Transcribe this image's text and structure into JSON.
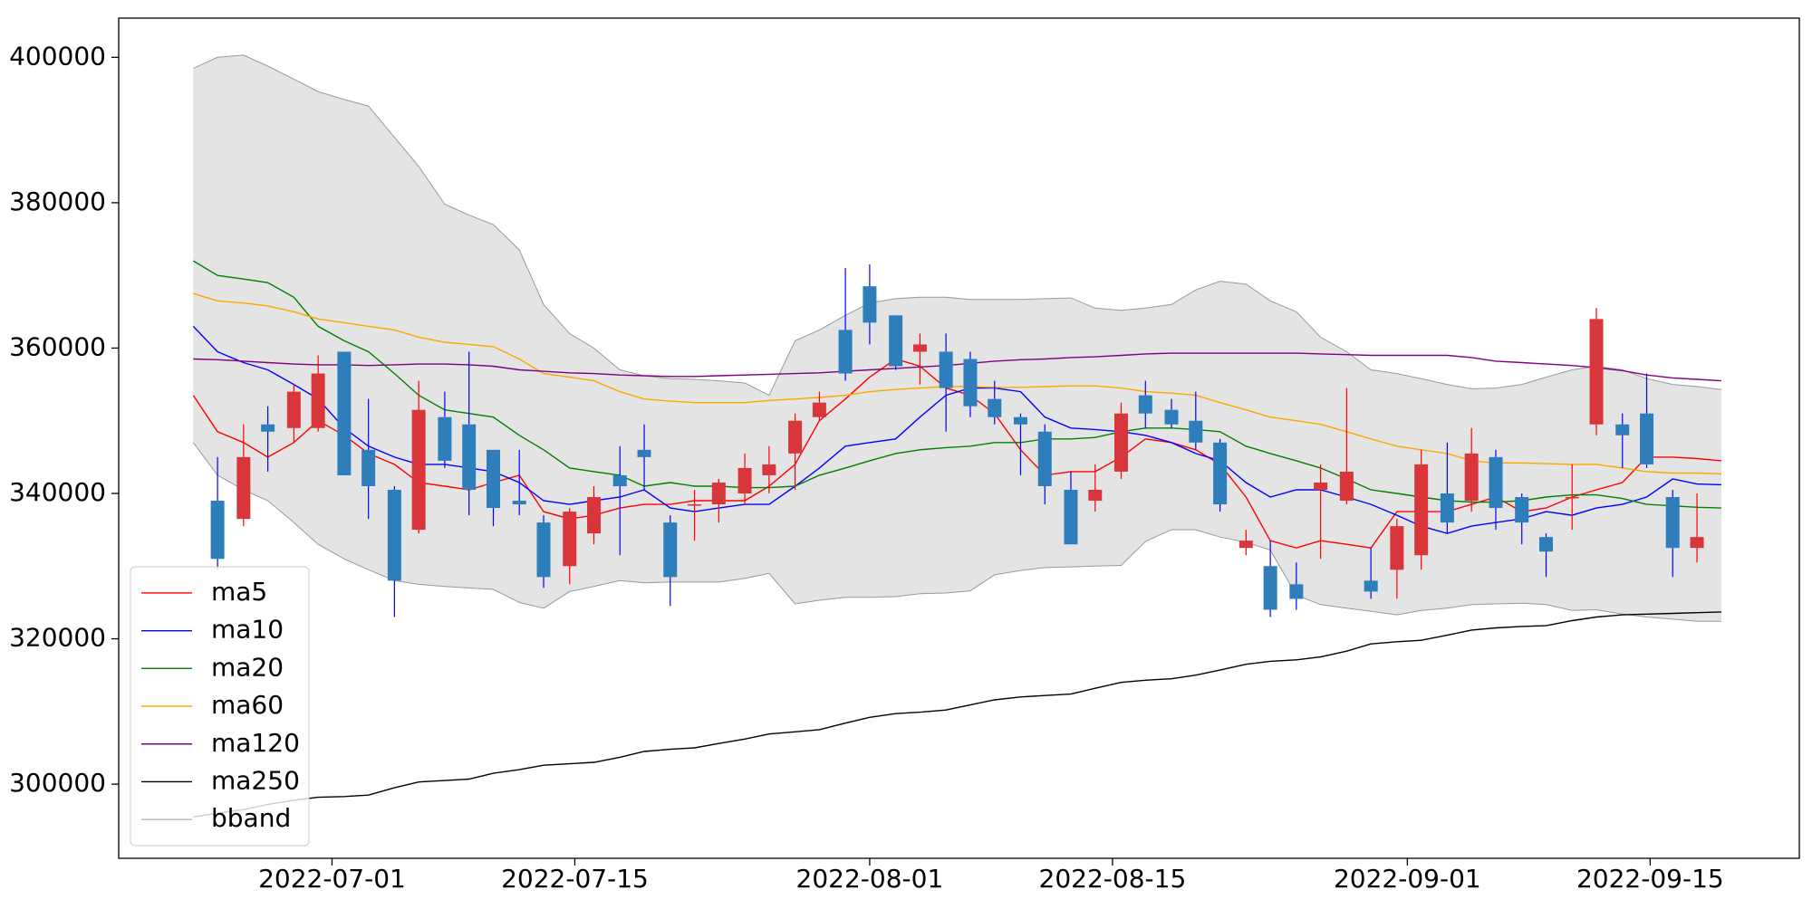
{
  "chart_data": {
    "type": "candlestick",
    "xlim": [
      -12.3,
      84.6
    ],
    "xticks": [
      {
        "value": 0,
        "label": "2022-07-01"
      },
      {
        "value": 14,
        "label": "2022-07-15"
      },
      {
        "value": 31,
        "label": "2022-08-01"
      },
      {
        "value": 45,
        "label": "2022-08-15"
      },
      {
        "value": 62,
        "label": "2022-09-01"
      },
      {
        "value": 76,
        "label": "2022-09-15"
      }
    ],
    "ylim": [
      289800,
      405400
    ],
    "yticks": [
      300000,
      320000,
      340000,
      360000,
      380000,
      400000
    ],
    "legend": "lower left",
    "x": [
      -8.0,
      -6.6,
      -5.1,
      -3.7,
      -2.2,
      -0.8,
      0.7,
      2.1,
      3.6,
      5.0,
      6.5,
      7.9,
      9.3,
      10.8,
      12.2,
      13.7,
      15.1,
      16.6,
      18.0,
      19.5,
      20.9,
      22.3,
      23.8,
      25.2,
      26.7,
      28.1,
      29.6,
      31.0,
      32.5,
      33.9,
      35.4,
      36.8,
      38.2,
      39.7,
      41.1,
      42.6,
      44.0,
      45.5,
      46.9,
      48.4,
      49.8,
      51.2,
      52.7,
      54.1,
      55.6,
      57.0,
      58.5,
      59.9,
      61.4,
      62.8,
      64.3,
      65.7,
      67.1,
      68.6,
      70.0,
      71.5,
      72.9,
      74.4,
      75.8,
      77.3,
      78.7,
      80.1
    ],
    "candles": {
      "up_color": "#d8363b",
      "down_color": "#2e7ebc",
      "up_wick": "#ff0000",
      "down_wick": "#0000ff",
      "open": [
        null,
        339000,
        336500,
        349500,
        349000,
        349000,
        359500,
        346000,
        340500,
        335000,
        350500,
        349500,
        346000,
        339000,
        336000,
        330000,
        334500,
        342500,
        346000,
        336000,
        338500,
        338500,
        340000,
        342500,
        345500,
        350500,
        362500,
        368500,
        364500,
        359500,
        359500,
        358500,
        353000,
        350500,
        348500,
        340500,
        339000,
        343000,
        353500,
        351500,
        350000,
        347000,
        332500,
        330000,
        327500,
        340500,
        339000,
        328000,
        329500,
        331500,
        340000,
        339000,
        345000,
        339500,
        334000,
        339500,
        349500,
        349500,
        351000,
        339500,
        332500,
        null
      ],
      "high": [
        null,
        345000,
        349500,
        352000,
        355000,
        359000,
        359500,
        353000,
        341000,
        355500,
        354000,
        359500,
        346000,
        346000,
        337000,
        338000,
        341000,
        346500,
        349500,
        337000,
        340500,
        342000,
        345500,
        346500,
        351000,
        354000,
        371000,
        371500,
        364500,
        362000,
        362000,
        359500,
        355500,
        351000,
        349500,
        343000,
        344000,
        352500,
        355500,
        353000,
        354000,
        347500,
        335000,
        333500,
        330500,
        344000,
        354500,
        332500,
        336500,
        346000,
        347000,
        349000,
        346000,
        340000,
        334500,
        344000,
        365500,
        351000,
        356500,
        340500,
        340000,
        null
      ],
      "low": [
        null,
        329500,
        335500,
        343000,
        347000,
        348500,
        342500,
        336500,
        323000,
        334500,
        343500,
        337000,
        335500,
        337000,
        327000,
        327500,
        333000,
        331500,
        340500,
        324500,
        333500,
        336000,
        338500,
        340000,
        340500,
        350000,
        355500,
        360500,
        357000,
        355000,
        348500,
        350500,
        349500,
        342500,
        338500,
        333000,
        337500,
        342000,
        349000,
        349000,
        346000,
        337500,
        331500,
        323000,
        324000,
        331000,
        338500,
        325500,
        325500,
        329500,
        334500,
        337500,
        335000,
        333000,
        328500,
        335000,
        348000,
        343500,
        343500,
        328500,
        330500,
        null
      ],
      "close": [
        null,
        331000,
        345000,
        348500,
        354000,
        356500,
        342500,
        341000,
        328000,
        351500,
        344500,
        340500,
        338000,
        338500,
        328500,
        337500,
        339500,
        341000,
        345000,
        328500,
        338500,
        341500,
        343500,
        344000,
        350000,
        352500,
        356500,
        363500,
        357500,
        360500,
        354500,
        352000,
        350500,
        349500,
        341000,
        333000,
        340500,
        351000,
        351000,
        349500,
        347000,
        338500,
        333500,
        324000,
        325500,
        341500,
        343000,
        326500,
        335500,
        344000,
        336000,
        345500,
        338000,
        336000,
        332000,
        339500,
        364000,
        348000,
        344000,
        332500,
        334000,
        null
      ]
    },
    "series": [
      {
        "name": "ma5",
        "color": "#ff0000",
        "values": [
          353500,
          348500,
          347000,
          345000,
          347000,
          350000,
          348000,
          345500,
          344000,
          341500,
          341000,
          340500,
          341500,
          342500,
          337500,
          336500,
          337000,
          338000,
          338500,
          338500,
          339000,
          339000,
          339000,
          341000,
          344000,
          350000,
          353000,
          356000,
          358500,
          357500,
          354500,
          353500,
          351000,
          346000,
          342500,
          343000,
          343000,
          345000,
          347500,
          347000,
          346000,
          344000,
          339500,
          333500,
          332500,
          333500,
          333000,
          332500,
          337500,
          337500,
          337500,
          338500,
          339500,
          337500,
          338000,
          339500,
          340500,
          341500,
          345000,
          345000,
          344800,
          344500
        ]
      },
      {
        "name": "ma10",
        "color": "#0000ff",
        "values": [
          363000,
          359500,
          358000,
          357000,
          355000,
          353000,
          349000,
          346500,
          345000,
          344000,
          344000,
          343500,
          343000,
          341500,
          339000,
          338500,
          339000,
          339500,
          340500,
          338000,
          337500,
          338000,
          338500,
          338500,
          341000,
          343500,
          346500,
          347000,
          347500,
          350500,
          353500,
          354500,
          354500,
          354000,
          350500,
          349000,
          348800,
          348500,
          348000,
          347000,
          345500,
          344500,
          341500,
          339500,
          340500,
          340500,
          339500,
          338500,
          337000,
          335500,
          334500,
          335500,
          336000,
          336500,
          337500,
          337000,
          338000,
          338500,
          339500,
          342000,
          341300,
          341200
        ]
      },
      {
        "name": "ma20",
        "color": "#008000",
        "values": [
          372000,
          370000,
          369500,
          369000,
          367000,
          363000,
          361000,
          359500,
          356500,
          353500,
          351500,
          351000,
          350500,
          348000,
          346000,
          343500,
          343000,
          342500,
          341000,
          341500,
          341000,
          341000,
          340800,
          340800,
          341000,
          342500,
          343500,
          344500,
          345500,
          346000,
          346300,
          346500,
          347000,
          347000,
          347500,
          347500,
          347700,
          348500,
          349000,
          349000,
          348800,
          348500,
          346500,
          345500,
          344500,
          343500,
          342000,
          340500,
          340000,
          339500,
          339000,
          338800,
          338800,
          339000,
          339500,
          339800,
          339800,
          339300,
          338500,
          338300,
          338100,
          338000
        ]
      },
      {
        "name": "ma60",
        "color": "#ffa500",
        "values": [
          367500,
          366500,
          366200,
          365800,
          365000,
          364000,
          363500,
          363000,
          362500,
          361500,
          360800,
          360500,
          360200,
          358500,
          356500,
          356000,
          355500,
          354000,
          353000,
          352700,
          352500,
          352500,
          352500,
          352800,
          353000,
          353200,
          353500,
          354000,
          354300,
          354500,
          354700,
          354700,
          354600,
          354600,
          354700,
          354800,
          354800,
          354500,
          354000,
          353800,
          353500,
          352500,
          351500,
          350500,
          350000,
          349500,
          348500,
          347500,
          346500,
          346000,
          345500,
          344500,
          344200,
          344200,
          344100,
          344000,
          344000,
          343500,
          343000,
          342800,
          342800,
          342700
        ]
      },
      {
        "name": "ma120",
        "color": "#800080",
        "values": [
          358500,
          358400,
          358200,
          358000,
          357800,
          357700,
          357700,
          357600,
          357700,
          357800,
          357800,
          357700,
          357500,
          357000,
          356800,
          356600,
          356500,
          356300,
          356200,
          356100,
          356100,
          356200,
          356300,
          356400,
          356500,
          356600,
          356800,
          357000,
          357200,
          357400,
          357600,
          357900,
          358200,
          358400,
          358500,
          358700,
          358800,
          359000,
          359200,
          359300,
          359300,
          359300,
          359300,
          359300,
          359300,
          359200,
          359100,
          359000,
          359000,
          359000,
          359000,
          358700,
          358200,
          358000,
          357800,
          357600,
          357300,
          356900,
          356300,
          355900,
          355700,
          355500
        ]
      },
      {
        "name": "ma250",
        "color": "#000000",
        "values": [
          295500,
          296000,
          296500,
          297200,
          297800,
          298200,
          298300,
          298500,
          299500,
          300300,
          300500,
          300700,
          301500,
          302000,
          302600,
          302800,
          303000,
          303700,
          304500,
          304800,
          305000,
          305600,
          306200,
          306900,
          307200,
          307500,
          308400,
          309200,
          309700,
          309900,
          310200,
          310900,
          311600,
          312000,
          312200,
          312400,
          313200,
          314000,
          314300,
          314500,
          315000,
          315700,
          316500,
          316900,
          317100,
          317500,
          318300,
          319300,
          319600,
          319800,
          320500,
          321200,
          321500,
          321700,
          321800,
          322500,
          323000,
          323300,
          323400,
          323500,
          323600,
          323700
        ]
      }
    ],
    "band": {
      "name": "bband",
      "color": "#999999",
      "fill": "#e4e4e4",
      "upper": [
        398500,
        400000,
        400300,
        398800,
        397000,
        395300,
        394200,
        393300,
        389000,
        385000,
        379800,
        378300,
        377000,
        373500,
        366000,
        362000,
        360000,
        357000,
        356200,
        355800,
        355700,
        355500,
        355200,
        353500,
        361000,
        362500,
        364500,
        366200,
        366800,
        367000,
        367000,
        366700,
        366700,
        366700,
        366800,
        366900,
        365500,
        365200,
        365500,
        366000,
        368000,
        369200,
        368800,
        366500,
        365000,
        361500,
        359500,
        357000,
        356500,
        355800,
        355000,
        354400,
        354500,
        355000,
        356000,
        357000,
        357500,
        357000,
        355800,
        355000,
        354700,
        354300
      ],
      "lower": [
        347000,
        342500,
        340500,
        339000,
        336000,
        333000,
        331000,
        329500,
        328000,
        327500,
        327200,
        327000,
        326800,
        325000,
        324200,
        326500,
        327200,
        328000,
        327700,
        327800,
        327800,
        327800,
        328300,
        329000,
        324800,
        325300,
        325700,
        325700,
        325800,
        326200,
        326300,
        326600,
        328800,
        329400,
        329800,
        329900,
        330000,
        330100,
        333400,
        335000,
        335000,
        334000,
        333300,
        332200,
        326000,
        324700,
        324200,
        323800,
        323300,
        323900,
        324200,
        324700,
        324800,
        324900,
        324700,
        323900,
        324000,
        323400,
        323000,
        322700,
        322400,
        322400
      ]
    }
  }
}
